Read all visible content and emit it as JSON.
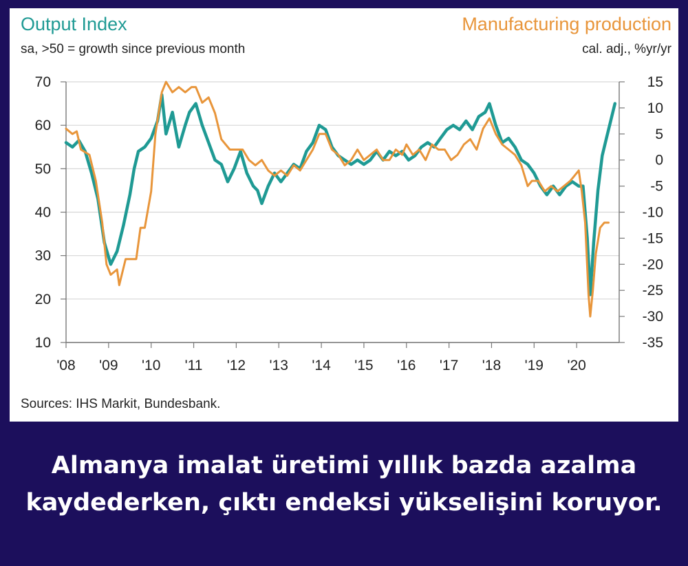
{
  "chart_data": {
    "type": "line",
    "title_left": "Output Index",
    "subtitle_left": "sa, >50 = growth since previous month",
    "title_right": "Manufacturing production",
    "subtitle_right": "cal. adj., %yr/yr",
    "x_tick_labels": [
      "'08",
      "'09",
      "'10",
      "'11",
      "'12",
      "'13",
      "'14",
      "'15",
      "'16",
      "'17",
      "'18",
      "'19",
      "'20"
    ],
    "xlim": [
      2008,
      2021
    ],
    "left_axis": {
      "ylim": [
        10,
        70
      ],
      "ticks": [
        70,
        60,
        50,
        40,
        30,
        20,
        10
      ]
    },
    "right_axis": {
      "ylim": [
        -35,
        15
      ],
      "ticks": [
        15,
        10,
        5,
        0,
        -5,
        -10,
        -15,
        -20,
        -25,
        -30,
        -35
      ]
    },
    "grid": true,
    "series": [
      {
        "name": "Output Index",
        "axis": "left",
        "color": "#1f9a94",
        "points": [
          [
            2008.0,
            56
          ],
          [
            2008.15,
            55
          ],
          [
            2008.3,
            56.5
          ],
          [
            2008.45,
            54
          ],
          [
            2008.6,
            49
          ],
          [
            2008.75,
            43
          ],
          [
            2008.9,
            33
          ],
          [
            2009.05,
            28
          ],
          [
            2009.2,
            31
          ],
          [
            2009.35,
            37
          ],
          [
            2009.5,
            44
          ],
          [
            2009.6,
            50
          ],
          [
            2009.7,
            54
          ],
          [
            2009.85,
            55
          ],
          [
            2010.0,
            57
          ],
          [
            2010.15,
            61
          ],
          [
            2010.25,
            67
          ],
          [
            2010.35,
            58
          ],
          [
            2010.5,
            63
          ],
          [
            2010.65,
            55
          ],
          [
            2010.8,
            60
          ],
          [
            2010.9,
            63
          ],
          [
            2011.05,
            65
          ],
          [
            2011.2,
            60
          ],
          [
            2011.35,
            56
          ],
          [
            2011.5,
            52
          ],
          [
            2011.65,
            51
          ],
          [
            2011.8,
            47
          ],
          [
            2011.95,
            50
          ],
          [
            2012.1,
            54
          ],
          [
            2012.25,
            49
          ],
          [
            2012.4,
            46
          ],
          [
            2012.5,
            45
          ],
          [
            2012.6,
            42
          ],
          [
            2012.75,
            46
          ],
          [
            2012.9,
            49
          ],
          [
            2013.05,
            47
          ],
          [
            2013.2,
            49
          ],
          [
            2013.35,
            51
          ],
          [
            2013.5,
            50
          ],
          [
            2013.65,
            54
          ],
          [
            2013.8,
            56
          ],
          [
            2013.95,
            60
          ],
          [
            2014.1,
            59
          ],
          [
            2014.25,
            55
          ],
          [
            2014.4,
            53
          ],
          [
            2014.55,
            52
          ],
          [
            2014.7,
            51
          ],
          [
            2014.85,
            52
          ],
          [
            2015.0,
            51
          ],
          [
            2015.15,
            52
          ],
          [
            2015.3,
            54
          ],
          [
            2015.45,
            52
          ],
          [
            2015.6,
            54
          ],
          [
            2015.75,
            53
          ],
          [
            2015.9,
            54
          ],
          [
            2016.05,
            52
          ],
          [
            2016.2,
            53
          ],
          [
            2016.35,
            55
          ],
          [
            2016.5,
            56
          ],
          [
            2016.65,
            55
          ],
          [
            2016.8,
            57
          ],
          [
            2016.95,
            59
          ],
          [
            2017.1,
            60
          ],
          [
            2017.25,
            59
          ],
          [
            2017.4,
            61
          ],
          [
            2017.55,
            59
          ],
          [
            2017.7,
            62
          ],
          [
            2017.85,
            63
          ],
          [
            2017.95,
            65
          ],
          [
            2018.1,
            60
          ],
          [
            2018.25,
            56
          ],
          [
            2018.4,
            57
          ],
          [
            2018.55,
            55
          ],
          [
            2018.7,
            52
          ],
          [
            2018.85,
            51
          ],
          [
            2019.0,
            49
          ],
          [
            2019.15,
            46
          ],
          [
            2019.3,
            44
          ],
          [
            2019.45,
            46
          ],
          [
            2019.6,
            44
          ],
          [
            2019.75,
            46
          ],
          [
            2019.9,
            47
          ],
          [
            2020.05,
            46
          ],
          [
            2020.15,
            46
          ],
          [
            2020.25,
            34
          ],
          [
            2020.32,
            21
          ],
          [
            2020.4,
            33
          ],
          [
            2020.5,
            45
          ],
          [
            2020.6,
            53
          ],
          [
            2020.7,
            57
          ],
          [
            2020.8,
            61
          ],
          [
            2020.9,
            65
          ]
        ]
      },
      {
        "name": "Manufacturing production",
        "axis": "right",
        "color": "#e8953a",
        "points": [
          [
            2008.0,
            6
          ],
          [
            2008.15,
            5
          ],
          [
            2008.25,
            5.5
          ],
          [
            2008.35,
            2
          ],
          [
            2008.55,
            1
          ],
          [
            2008.7,
            -4
          ],
          [
            2008.85,
            -12
          ],
          [
            2008.95,
            -20
          ],
          [
            2009.05,
            -22
          ],
          [
            2009.2,
            -21
          ],
          [
            2009.25,
            -24
          ],
          [
            2009.4,
            -19
          ],
          [
            2009.55,
            -19
          ],
          [
            2009.65,
            -19
          ],
          [
            2009.75,
            -13
          ],
          [
            2009.85,
            -13
          ],
          [
            2010.0,
            -6
          ],
          [
            2010.1,
            5
          ],
          [
            2010.25,
            13
          ],
          [
            2010.35,
            15
          ],
          [
            2010.5,
            13
          ],
          [
            2010.65,
            14
          ],
          [
            2010.8,
            13
          ],
          [
            2010.95,
            14
          ],
          [
            2011.05,
            14
          ],
          [
            2011.2,
            11
          ],
          [
            2011.35,
            12
          ],
          [
            2011.5,
            9
          ],
          [
            2011.65,
            4
          ],
          [
            2011.85,
            2
          ],
          [
            2011.95,
            2
          ],
          [
            2012.15,
            2
          ],
          [
            2012.3,
            0
          ],
          [
            2012.45,
            -1
          ],
          [
            2012.6,
            0
          ],
          [
            2012.75,
            -2
          ],
          [
            2012.9,
            -3
          ],
          [
            2013.05,
            -2
          ],
          [
            2013.2,
            -3
          ],
          [
            2013.35,
            -1
          ],
          [
            2013.5,
            -2
          ],
          [
            2013.65,
            0
          ],
          [
            2013.8,
            2
          ],
          [
            2013.95,
            5
          ],
          [
            2014.1,
            5
          ],
          [
            2014.25,
            2
          ],
          [
            2014.4,
            1
          ],
          [
            2014.55,
            -1
          ],
          [
            2014.7,
            0
          ],
          [
            2014.85,
            2
          ],
          [
            2015.0,
            0
          ],
          [
            2015.15,
            1
          ],
          [
            2015.3,
            2
          ],
          [
            2015.45,
            0
          ],
          [
            2015.6,
            0
          ],
          [
            2015.75,
            2
          ],
          [
            2015.9,
            1
          ],
          [
            2016.0,
            3
          ],
          [
            2016.15,
            1
          ],
          [
            2016.3,
            2
          ],
          [
            2016.45,
            0
          ],
          [
            2016.6,
            3
          ],
          [
            2016.75,
            2
          ],
          [
            2016.9,
            2
          ],
          [
            2017.05,
            0
          ],
          [
            2017.2,
            1
          ],
          [
            2017.35,
            3
          ],
          [
            2017.5,
            4
          ],
          [
            2017.65,
            2
          ],
          [
            2017.8,
            6
          ],
          [
            2017.95,
            8
          ],
          [
            2018.1,
            5
          ],
          [
            2018.25,
            3
          ],
          [
            2018.4,
            2
          ],
          [
            2018.55,
            1
          ],
          [
            2018.7,
            -1
          ],
          [
            2018.85,
            -5
          ],
          [
            2018.95,
            -4
          ],
          [
            2019.1,
            -4
          ],
          [
            2019.25,
            -6
          ],
          [
            2019.4,
            -5
          ],
          [
            2019.55,
            -6
          ],
          [
            2019.7,
            -5
          ],
          [
            2019.85,
            -4
          ],
          [
            2019.95,
            -3
          ],
          [
            2020.05,
            -2
          ],
          [
            2020.12,
            -6
          ],
          [
            2020.2,
            -12
          ],
          [
            2020.28,
            -26
          ],
          [
            2020.32,
            -30
          ],
          [
            2020.38,
            -25
          ],
          [
            2020.45,
            -18
          ],
          [
            2020.55,
            -13
          ],
          [
            2020.65,
            -12
          ],
          [
            2020.75,
            -12
          ]
        ]
      }
    ],
    "source": "Sources: IHS Markit, Bundesbank."
  },
  "caption": {
    "line1": "Almanya imalat üretimi yıllık bazda azalma",
    "line2": "kaydederken, çıktı endeksi yükselişini koruyor."
  }
}
